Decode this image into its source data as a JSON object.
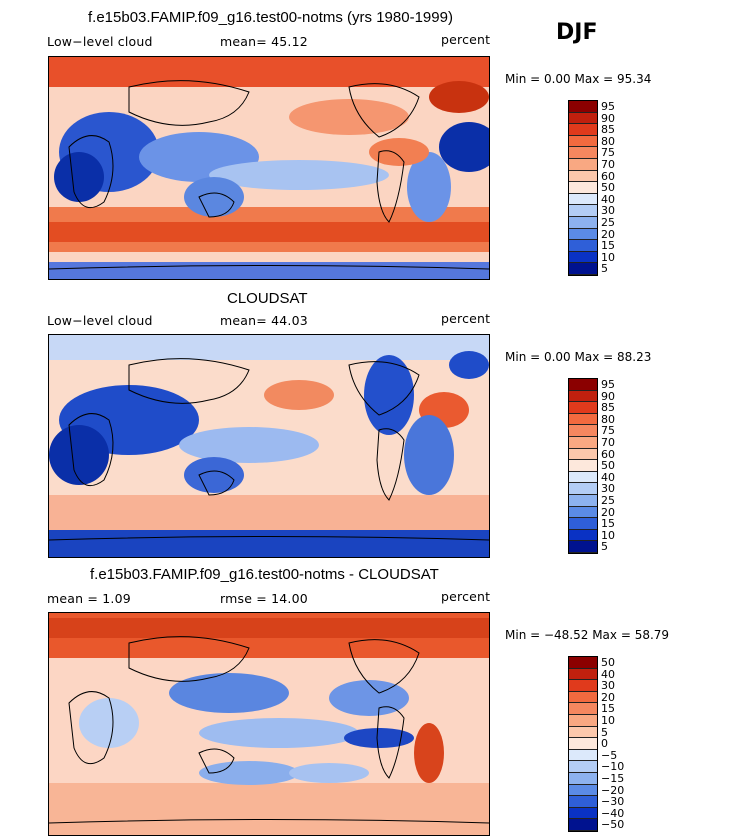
{
  "season": "DJF",
  "panels": [
    {
      "title": "f.e15b03.FAMIP.f09_g16.test00-notms (yrs 1980-1999)",
      "left_label": "Low−level cloud",
      "mid_label": "mean=  45.12",
      "right_label": "percent",
      "minmax": "Min =    0.00 Max =  95.34",
      "legend_labels": [
        "95",
        "90",
        "85",
        "80",
        "75",
        "70",
        "60",
        "50",
        "40",
        "30",
        "25",
        "20",
        "15",
        "10",
        "5"
      ],
      "legend_colors": [
        "#8b0000",
        "#c0200e",
        "#e03a1c",
        "#f26a3f",
        "#f5875f",
        "#f9a882",
        "#fcc8ac",
        "#fde8dc",
        "#dce9fb",
        "#b3cdf5",
        "#8db2ef",
        "#5b8be6",
        "#2f5fd8",
        "#0a32c4",
        "#00128f"
      ]
    },
    {
      "title": "CLOUDSAT",
      "left_label": "Low−level cloud",
      "mid_label": "mean=  44.03",
      "right_label": "percent",
      "minmax": "Min =    0.00 Max =  88.23",
      "legend_labels": [
        "95",
        "90",
        "85",
        "80",
        "75",
        "70",
        "60",
        "50",
        "40",
        "30",
        "25",
        "20",
        "15",
        "10",
        "5"
      ],
      "legend_colors": [
        "#8b0000",
        "#c0200e",
        "#e03a1c",
        "#f26a3f",
        "#f5875f",
        "#f9a882",
        "#fcc8ac",
        "#fde8dc",
        "#dce9fb",
        "#b3cdf5",
        "#8db2ef",
        "#5b8be6",
        "#2f5fd8",
        "#0a32c4",
        "#00128f"
      ]
    },
    {
      "title": "f.e15b03.FAMIP.f09_g16.test00-notms - CLOUDSAT",
      "left_label": "mean =    1.09",
      "mid_label": "rmse =   14.00",
      "right_label": "percent",
      "minmax": "Min = −48.52 Max =  58.79",
      "legend_labels": [
        "50",
        "40",
        "30",
        "20",
        "15",
        "10",
        "5",
        "0",
        "−5",
        "−10",
        "−15",
        "−20",
        "−30",
        "−40",
        "−50"
      ],
      "legend_colors": [
        "#8b0000",
        "#c0200e",
        "#e03a1c",
        "#f26a3f",
        "#f5875f",
        "#f9a882",
        "#fcc8ac",
        "#fde8dc",
        "#dce9fb",
        "#b3cdf5",
        "#8db2ef",
        "#5b8be6",
        "#2f5fd8",
        "#0a32c4",
        "#00128f"
      ]
    }
  ],
  "chart_data": [
    {
      "type": "heatmap",
      "title": "f.e15b03.FAMIP.f09_g16.test00-notms (yrs 1980-1999)",
      "variable": "Low-level cloud",
      "units": "percent",
      "mean": 45.12,
      "min": 0.0,
      "max": 95.34,
      "levels": [
        5,
        10,
        15,
        20,
        25,
        30,
        40,
        50,
        60,
        70,
        75,
        80,
        85,
        90,
        95
      ]
    },
    {
      "type": "heatmap",
      "title": "CLOUDSAT",
      "variable": "Low-level cloud",
      "units": "percent",
      "mean": 44.03,
      "min": 0.0,
      "max": 88.23,
      "levels": [
        5,
        10,
        15,
        20,
        25,
        30,
        40,
        50,
        60,
        70,
        75,
        80,
        85,
        90,
        95
      ]
    },
    {
      "type": "heatmap",
      "title": "f.e15b03.FAMIP.f09_g16.test00-notms - CLOUDSAT",
      "units": "percent",
      "mean": 1.09,
      "rmse": 14.0,
      "min": -48.52,
      "max": 58.79,
      "levels": [
        -50,
        -40,
        -30,
        -20,
        -15,
        -10,
        -5,
        0,
        5,
        10,
        15,
        20,
        30,
        40,
        50
      ]
    }
  ]
}
